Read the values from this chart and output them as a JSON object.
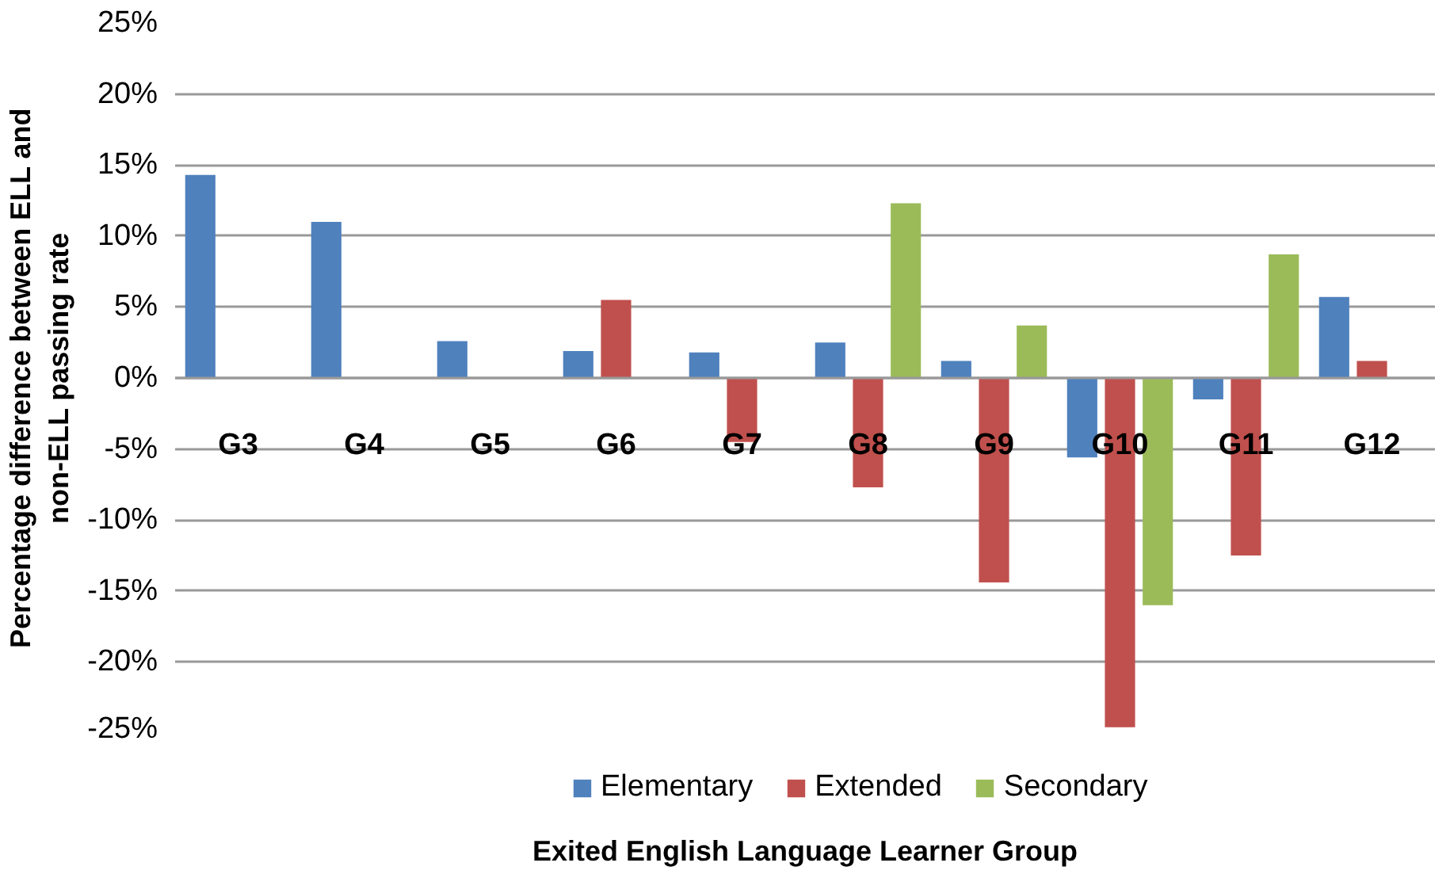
{
  "chart_data": {
    "type": "bar",
    "categories": [
      "G3",
      "G4",
      "G5",
      "G6",
      "G7",
      "G8",
      "G9",
      "G10",
      "G11",
      "G12"
    ],
    "series": [
      {
        "name": "Elementary",
        "color": "#4f81bd",
        "values": [
          14.3,
          11,
          2.6,
          1.9,
          1.8,
          2.5,
          1.2,
          -5.6,
          -1.5,
          5.7
        ]
      },
      {
        "name": "Extended",
        "color": "#c0504d",
        "values": [
          null,
          null,
          null,
          5.5,
          -4.5,
          -7.7,
          -14.4,
          -24.6,
          -12.5,
          1.2
        ]
      },
      {
        "name": "Secondary",
        "color": "#9bbb59",
        "values": [
          null,
          null,
          null,
          null,
          null,
          12.3,
          3.7,
          -16,
          8.7,
          null
        ]
      }
    ],
    "ylim": [
      -25,
      25
    ],
    "yticks": [
      {
        "value": -25,
        "label": "-25%"
      },
      {
        "value": -20,
        "label": "-20%"
      },
      {
        "value": -15,
        "label": "-15%"
      },
      {
        "value": -10,
        "label": "-10%"
      },
      {
        "value": -5,
        "label": "-5%"
      },
      {
        "value": 0,
        "label": "0%"
      },
      {
        "value": 5,
        "label": "5%"
      },
      {
        "value": 10,
        "label": "10%"
      },
      {
        "value": 15,
        "label": "15%"
      },
      {
        "value": 20,
        "label": "20%"
      },
      {
        "value": 25,
        "label": "25%"
      }
    ],
    "xlabel": "Exited English Language Learner Group",
    "ylabel": "Percentage difference between ELL and\nnon-ELL passing rate",
    "grid": "y",
    "legend": "bottom"
  }
}
